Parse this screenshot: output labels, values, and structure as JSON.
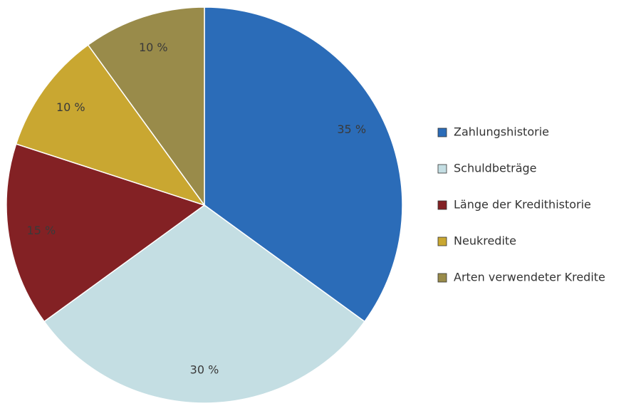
{
  "chart_data": {
    "type": "pie",
    "categories": [
      "Zahlungshistorie",
      "Schuldbeträge",
      "Länge der Kredithistorie",
      "Neukredite",
      "Arten verwendeter Kredite"
    ],
    "values": [
      35,
      30,
      15,
      10,
      10
    ],
    "value_labels": [
      "35 %",
      "30 %",
      "15 %",
      "10 %",
      "10 %"
    ],
    "colors": [
      "#2b6cb8",
      "#c4dee3",
      "#832124",
      "#c9a731",
      "#998b4a"
    ],
    "legend": "right"
  }
}
